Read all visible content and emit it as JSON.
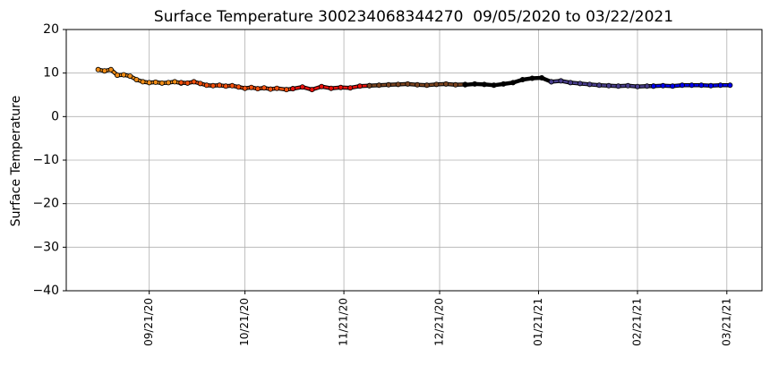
{
  "chart_data": {
    "type": "line",
    "title": "Surface Temperature 300234068344270  09/05/2020 to 03/22/2021",
    "y_label": "Surface Temperature",
    "grid": true,
    "xlim": [
      "2020-08-26",
      "2021-04-01"
    ],
    "xticks": [
      {
        "value": "2020-09-21",
        "label": "09/21/20"
      },
      {
        "value": "2020-10-21",
        "label": "10/21/20"
      },
      {
        "value": "2020-11-21",
        "label": "11/21/20"
      },
      {
        "value": "2020-12-21",
        "label": "12/21/20"
      },
      {
        "value": "2021-01-21",
        "label": "01/21/21"
      },
      {
        "value": "2021-02-21",
        "label": "02/21/21"
      },
      {
        "value": "2021-03-21",
        "label": "03/21/21"
      }
    ],
    "ylim": [
      -40,
      20
    ],
    "yticks": [
      {
        "value": -40,
        "label": "−40"
      },
      {
        "value": -30,
        "label": "−30"
      },
      {
        "value": -20,
        "label": "−20"
      },
      {
        "value": -10,
        "label": "−10"
      },
      0,
      10,
      20
    ],
    "series": [
      {
        "color": "#f08c16",
        "x": [
          "2020-09-05",
          "2020-09-07",
          "2020-09-09",
          "2020-09-11",
          "2020-09-13",
          "2020-09-15",
          "2020-09-17",
          "2020-09-19",
          "2020-09-21",
          "2020-09-23",
          "2020-09-25",
          "2020-09-27",
          "2020-09-29",
          "2020-10-01"
        ],
        "values": [
          10.8,
          10.5,
          10.8,
          9.5,
          9.6,
          9.3,
          8.5,
          8.0,
          7.8,
          7.9,
          7.7,
          7.8,
          8.0,
          7.7
        ]
      },
      {
        "color": "#f4500c",
        "x": [
          "2020-10-01",
          "2020-10-03",
          "2020-10-05",
          "2020-10-07",
          "2020-10-09",
          "2020-10-11",
          "2020-10-13",
          "2020-10-15",
          "2020-10-17",
          "2020-10-19",
          "2020-10-21",
          "2020-10-23",
          "2020-10-25",
          "2020-10-27",
          "2020-10-29",
          "2020-10-31",
          "2020-11-03",
          "2020-11-05"
        ],
        "values": [
          7.8,
          7.7,
          8.0,
          7.6,
          7.2,
          7.1,
          7.2,
          7.0,
          7.1,
          6.8,
          6.5,
          6.7,
          6.4,
          6.6,
          6.3,
          6.5,
          6.2,
          6.4
        ]
      },
      {
        "color": "#e8100a",
        "x": [
          "2020-11-05",
          "2020-11-08",
          "2020-11-11",
          "2020-11-14",
          "2020-11-17",
          "2020-11-20",
          "2020-11-23",
          "2020-11-26",
          "2020-11-29"
        ],
        "values": [
          6.4,
          6.8,
          6.2,
          6.9,
          6.5,
          6.7,
          6.6,
          7.0,
          7.1
        ]
      },
      {
        "color": "#7a4420",
        "x": [
          "2020-11-29",
          "2020-12-02",
          "2020-12-05",
          "2020-12-08",
          "2020-12-11",
          "2020-12-14",
          "2020-12-17",
          "2020-12-20",
          "2020-12-23",
          "2020-12-26",
          "2020-12-29"
        ],
        "values": [
          7.1,
          7.2,
          7.3,
          7.4,
          7.5,
          7.3,
          7.2,
          7.4,
          7.5,
          7.3,
          7.4
        ]
      },
      {
        "color": "#000000",
        "x": [
          "2020-12-29",
          "2021-01-01",
          "2021-01-04",
          "2021-01-07",
          "2021-01-10",
          "2021-01-13",
          "2021-01-16",
          "2021-01-19",
          "2021-01-22",
          "2021-01-25"
        ],
        "values": [
          7.3,
          7.5,
          7.4,
          7.2,
          7.5,
          7.8,
          8.5,
          8.8,
          8.9,
          8.0
        ]
      },
      {
        "color": "#483d8b",
        "x": [
          "2021-01-25",
          "2021-01-28",
          "2021-01-31",
          "2021-02-03",
          "2021-02-06",
          "2021-02-09",
          "2021-02-12",
          "2021-02-15",
          "2021-02-18",
          "2021-02-21",
          "2021-02-24",
          "2021-02-26"
        ],
        "values": [
          8.0,
          8.2,
          7.8,
          7.6,
          7.4,
          7.2,
          7.1,
          7.0,
          7.1,
          6.9,
          7.0,
          7.0
        ]
      },
      {
        "color": "#0000ee",
        "x": [
          "2021-02-26",
          "2021-03-01",
          "2021-03-04",
          "2021-03-07",
          "2021-03-10",
          "2021-03-13",
          "2021-03-16",
          "2021-03-19",
          "2021-03-22"
        ],
        "values": [
          7.0,
          7.1,
          7.0,
          7.2,
          7.2,
          7.2,
          7.1,
          7.2,
          7.2
        ]
      }
    ]
  }
}
